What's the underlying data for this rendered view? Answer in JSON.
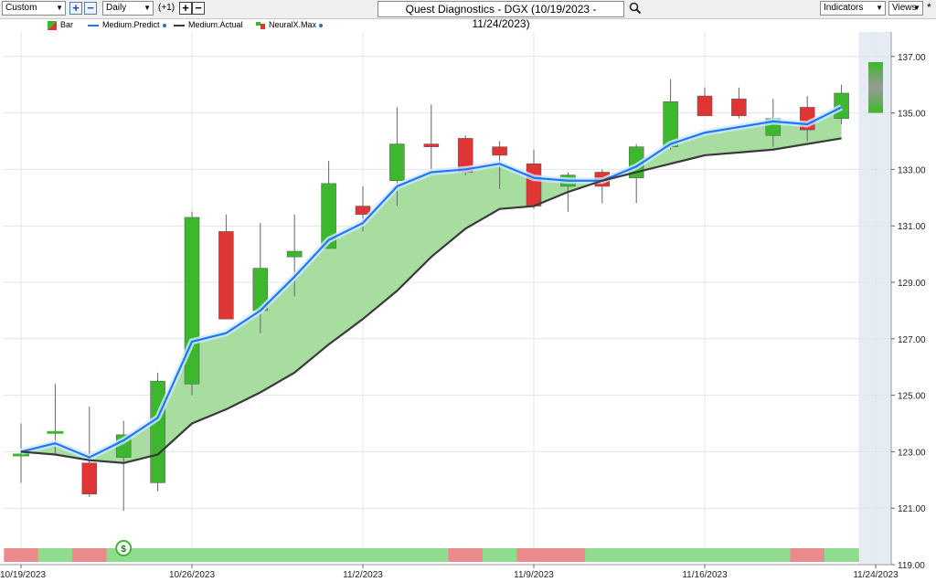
{
  "toolbar": {
    "range_select": "Custom",
    "interval_select": "Daily",
    "offset_label": "(+1)",
    "title": "Quest Diagnostics - DGX (10/19/2023 - 11/24/2023)",
    "indicators_label": "Indicators",
    "views_label": "Views",
    "plus_icon": "plus-icon",
    "minus_icon": "minus-icon",
    "search_icon": "search-icon"
  },
  "legend": [
    {
      "label": "Bar",
      "swatch": "bar-icon"
    },
    {
      "label": "Medium.Predict",
      "color": "#1e78ff",
      "info": true
    },
    {
      "label": "Medium.Actual",
      "color": "#3a3a3a"
    },
    {
      "label": "NeuralX.Max",
      "swatch": "neural-icon",
      "info": true
    }
  ],
  "colors": {
    "up": "#3db82e",
    "down": "#e03535",
    "predict": "#1e78ff",
    "actual": "#3a3a3a",
    "band": "#a7dea0",
    "signal_up": "#8fdc8f",
    "signal_down": "#eb8a8a"
  },
  "chart_data": {
    "type": "candlestick",
    "dates": [
      "10/19/2023",
      "10/20/2023",
      "10/23/2023",
      "10/24/2023",
      "10/25/2023",
      "10/26/2023",
      "10/27/2023",
      "10/30/2023",
      "10/31/2023",
      "11/1/2023",
      "11/2/2023",
      "11/3/2023",
      "11/6/2023",
      "11/7/2023",
      "11/8/2023",
      "11/9/2023",
      "11/10/2023",
      "11/13/2023",
      "11/14/2023",
      "11/15/2023",
      "11/16/2023",
      "11/17/2023",
      "11/20/2023",
      "11/21/2023",
      "11/22/2023",
      "11/24/2023"
    ],
    "candles": [
      {
        "o": 122.9,
        "h": 124.0,
        "l": 121.9,
        "c": 122.9
      },
      {
        "o": 123.7,
        "h": 125.4,
        "l": 122.9,
        "c": 123.7
      },
      {
        "o": 122.6,
        "h": 124.6,
        "l": 121.4,
        "c": 121.5
      },
      {
        "o": 122.8,
        "h": 124.1,
        "l": 120.9,
        "c": 123.6
      },
      {
        "o": 121.9,
        "h": 125.8,
        "l": 121.6,
        "c": 125.5
      },
      {
        "o": 125.4,
        "h": 131.5,
        "l": 125.0,
        "c": 131.3
      },
      {
        "o": 130.8,
        "h": 131.4,
        "l": 127.7,
        "c": 127.7
      },
      {
        "o": 128.0,
        "h": 131.1,
        "l": 127.2,
        "c": 129.5
      },
      {
        "o": 129.9,
        "h": 131.4,
        "l": 128.5,
        "c": 130.1
      },
      {
        "o": 130.2,
        "h": 133.3,
        "l": 130.2,
        "c": 132.5
      },
      {
        "o": 131.7,
        "h": 132.4,
        "l": 130.8,
        "c": 131.4
      },
      {
        "o": 132.6,
        "h": 135.2,
        "l": 131.7,
        "c": 133.9
      },
      {
        "o": 133.9,
        "h": 135.3,
        "l": 133.0,
        "c": 133.8
      },
      {
        "o": 134.1,
        "h": 134.2,
        "l": 132.8,
        "c": 132.9
      },
      {
        "o": 133.8,
        "h": 134.0,
        "l": 132.3,
        "c": 133.5
      },
      {
        "o": 133.2,
        "h": 133.7,
        "l": 131.6,
        "c": 131.7
      },
      {
        "o": 132.4,
        "h": 132.9,
        "l": 131.5,
        "c": 132.8
      },
      {
        "o": 132.9,
        "h": 133.0,
        "l": 131.8,
        "c": 132.4
      },
      {
        "o": 132.7,
        "h": 133.9,
        "l": 131.8,
        "c": 133.8
      },
      {
        "o": 133.8,
        "h": 136.2,
        "l": 133.7,
        "c": 135.4
      },
      {
        "o": 135.6,
        "h": 135.9,
        "l": 134.9,
        "c": 134.9
      },
      {
        "o": 135.5,
        "h": 135.9,
        "l": 134.8,
        "c": 134.9
      },
      {
        "o": 134.2,
        "h": 135.5,
        "l": 133.8,
        "c": 134.8
      },
      {
        "o": 135.2,
        "h": 135.6,
        "l": 134.0,
        "c": 134.4
      },
      {
        "o": 134.8,
        "h": 136.0,
        "l": 134.6,
        "c": 135.7
      },
      {
        "o": 135.0,
        "h": 136.8,
        "l": 135.0,
        "c": 136.8
      }
    ],
    "predict": [
      123.0,
      123.3,
      122.8,
      123.4,
      124.2,
      126.9,
      127.2,
      128.0,
      129.2,
      130.5,
      131.1,
      132.4,
      132.9,
      133.0,
      133.2,
      132.7,
      132.6,
      132.6,
      133.1,
      133.9,
      134.3,
      134.5,
      134.7,
      134.6,
      135.2
    ],
    "actual": [
      123.0,
      122.9,
      122.7,
      122.6,
      122.9,
      124.0,
      124.5,
      125.1,
      125.8,
      126.8,
      127.7,
      128.7,
      129.9,
      130.9,
      131.6,
      131.7,
      132.2,
      132.6,
      132.9,
      133.2,
      133.5,
      133.6,
      133.7,
      133.9,
      134.1
    ],
    "signal": [
      "down",
      "up",
      "down",
      "up",
      "up",
      "up",
      "up",
      "up",
      "up",
      "up",
      "up",
      "up",
      "up",
      "down",
      "up",
      "down",
      "down",
      "up",
      "up",
      "up",
      "up",
      "up",
      "up",
      "down",
      "up"
    ],
    "y_ticks": [
      "137.00",
      "135.00",
      "133.00",
      "131.00",
      "129.00",
      "127.00",
      "125.00",
      "123.00",
      "121.00",
      "119.00"
    ],
    "x_labels": [
      {
        "index": 0,
        "label": "10/19/2023"
      },
      {
        "index": 5,
        "label": "10/26/2023"
      },
      {
        "index": 10,
        "label": "11/2/2023"
      },
      {
        "index": 15,
        "label": "11/9/2023"
      },
      {
        "index": 20,
        "label": "11/16/2023"
      },
      {
        "index": 25,
        "label": "11/24/2023"
      }
    ],
    "ylim": [
      119,
      138
    ],
    "grid": true,
    "forecast_day": 25,
    "signal_marker": {
      "index": 3,
      "label": "$"
    }
  }
}
